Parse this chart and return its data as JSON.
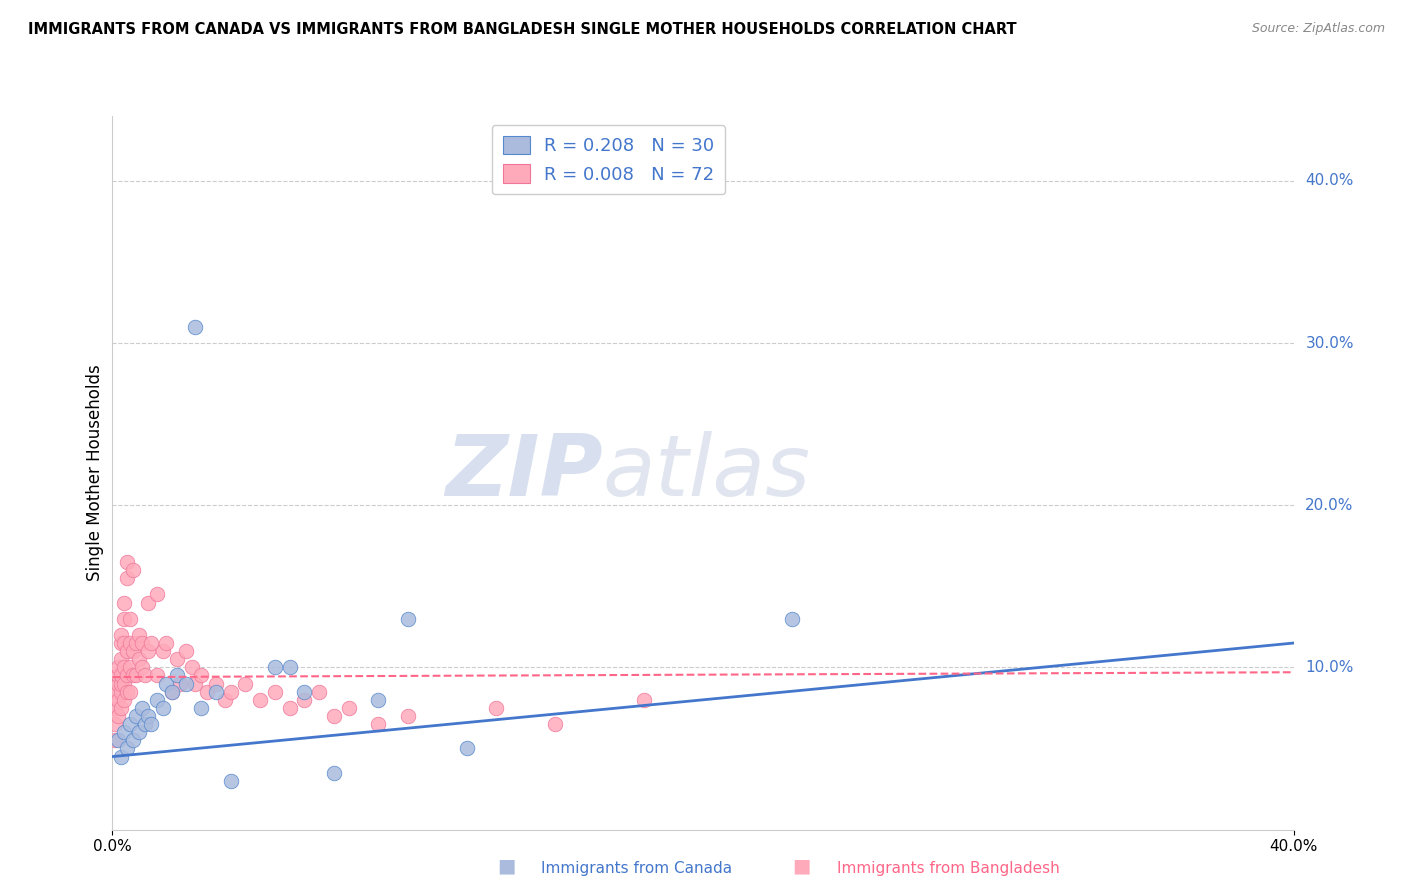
{
  "title": "IMMIGRANTS FROM CANADA VS IMMIGRANTS FROM BANGLADESH SINGLE MOTHER HOUSEHOLDS CORRELATION CHART",
  "source": "Source: ZipAtlas.com",
  "ylabel": "Single Mother Households",
  "xlim": [
    0.0,
    0.4
  ],
  "ylim": [
    0.0,
    0.44
  ],
  "ytick_vals": [
    0.1,
    0.2,
    0.3,
    0.4
  ],
  "ytick_labels": [
    "10.0%",
    "20.0%",
    "30.0%",
    "40.0%"
  ],
  "canada_R": 0.208,
  "canada_N": 30,
  "bangladesh_R": 0.008,
  "bangladesh_N": 72,
  "canada_color": "#AABBDD",
  "bangladesh_color": "#FFAABB",
  "canada_edge_color": "#5588CC",
  "bangladesh_edge_color": "#EE7799",
  "canada_line_color": "#4477CC",
  "bangladesh_line_color": "#FF6688",
  "watermark_zip": "ZIP",
  "watermark_atlas": "atlas",
  "legend_canada_label": "Immigrants from Canada",
  "legend_bangladesh_label": "Immigrants from Bangladesh",
  "canada_scatter_x": [
    0.002,
    0.003,
    0.004,
    0.005,
    0.006,
    0.007,
    0.008,
    0.009,
    0.01,
    0.011,
    0.012,
    0.013,
    0.015,
    0.017,
    0.018,
    0.02,
    0.022,
    0.025,
    0.028,
    0.03,
    0.035,
    0.04,
    0.055,
    0.06,
    0.065,
    0.075,
    0.09,
    0.1,
    0.12,
    0.23
  ],
  "canada_scatter_y": [
    0.055,
    0.045,
    0.06,
    0.05,
    0.065,
    0.055,
    0.07,
    0.06,
    0.075,
    0.065,
    0.07,
    0.065,
    0.08,
    0.075,
    0.09,
    0.085,
    0.095,
    0.09,
    0.31,
    0.075,
    0.085,
    0.03,
    0.1,
    0.1,
    0.085,
    0.035,
    0.08,
    0.13,
    0.05,
    0.13
  ],
  "bangladesh_scatter_x": [
    0.001,
    0.001,
    0.001,
    0.001,
    0.002,
    0.002,
    0.002,
    0.002,
    0.002,
    0.003,
    0.003,
    0.003,
    0.003,
    0.003,
    0.003,
    0.003,
    0.004,
    0.004,
    0.004,
    0.004,
    0.004,
    0.004,
    0.005,
    0.005,
    0.005,
    0.005,
    0.005,
    0.006,
    0.006,
    0.006,
    0.006,
    0.007,
    0.007,
    0.007,
    0.008,
    0.008,
    0.009,
    0.009,
    0.01,
    0.01,
    0.011,
    0.012,
    0.012,
    0.013,
    0.015,
    0.015,
    0.017,
    0.018,
    0.02,
    0.022,
    0.023,
    0.025,
    0.027,
    0.028,
    0.03,
    0.032,
    0.035,
    0.038,
    0.04,
    0.045,
    0.05,
    0.055,
    0.06,
    0.065,
    0.07,
    0.075,
    0.08,
    0.09,
    0.1,
    0.13,
    0.15,
    0.18
  ],
  "bangladesh_scatter_y": [
    0.085,
    0.075,
    0.065,
    0.055,
    0.08,
    0.09,
    0.095,
    0.1,
    0.07,
    0.075,
    0.085,
    0.09,
    0.095,
    0.105,
    0.115,
    0.12,
    0.08,
    0.09,
    0.1,
    0.115,
    0.13,
    0.14,
    0.085,
    0.095,
    0.11,
    0.155,
    0.165,
    0.085,
    0.1,
    0.115,
    0.13,
    0.095,
    0.11,
    0.16,
    0.095,
    0.115,
    0.105,
    0.12,
    0.1,
    0.115,
    0.095,
    0.11,
    0.14,
    0.115,
    0.095,
    0.145,
    0.11,
    0.115,
    0.085,
    0.105,
    0.09,
    0.11,
    0.1,
    0.09,
    0.095,
    0.085,
    0.09,
    0.08,
    0.085,
    0.09,
    0.08,
    0.085,
    0.075,
    0.08,
    0.085,
    0.07,
    0.075,
    0.065,
    0.07,
    0.075,
    0.065,
    0.08
  ],
  "canada_line_x0": 0.0,
  "canada_line_y0": 0.045,
  "canada_line_x1": 0.4,
  "canada_line_y1": 0.115,
  "bangladesh_line_x0": 0.0,
  "bangladesh_line_y0": 0.094,
  "bangladesh_line_x1": 0.4,
  "bangladesh_line_y1": 0.097
}
